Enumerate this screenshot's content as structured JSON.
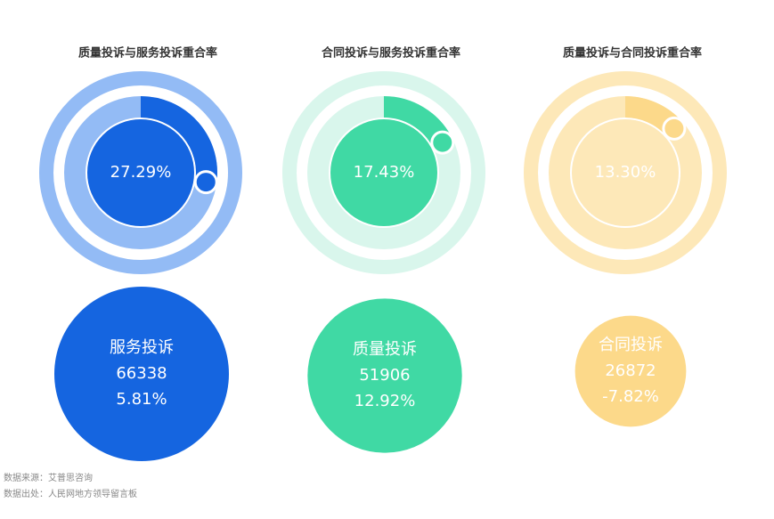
{
  "chart_data": [
    {
      "type": "gauge",
      "title": "质量投诉与服务投诉重合率",
      "values": [
        27.29
      ],
      "value_labels": [
        "27.29%"
      ],
      "color": "#1565e0",
      "track_color": "#93bbf5",
      "center_color": "#1565e0"
    },
    {
      "type": "gauge",
      "title": "合同投诉与服务投诉重合率",
      "values": [
        17.43
      ],
      "value_labels": [
        "17.43%"
      ],
      "color": "#40d9a4",
      "track_color": "#d9f6ec",
      "center_color": "#40d9a4"
    },
    {
      "type": "gauge",
      "title": "质量投诉与合同投诉重合率",
      "values": [
        13.3
      ],
      "value_labels": [
        "13.30%"
      ],
      "color": "#fcd98a",
      "track_color": "#fde8b8",
      "center_color": "#fde8b8"
    },
    {
      "type": "bubble",
      "categories": [
        "服务投诉",
        "质量投诉",
        "合同投诉"
      ],
      "values": [
        66338,
        51906,
        26872
      ],
      "changes": [
        5.81,
        12.92,
        -7.82
      ],
      "change_labels": [
        "5.81%",
        "12.92%",
        "-7.82%"
      ],
      "colors": [
        "#1565e0",
        "#40d9a4",
        "#fcd98a"
      ]
    }
  ],
  "footer": {
    "source": "数据来源：艾普思咨询",
    "origin": "数据出处：人民网地方领导留言板"
  }
}
